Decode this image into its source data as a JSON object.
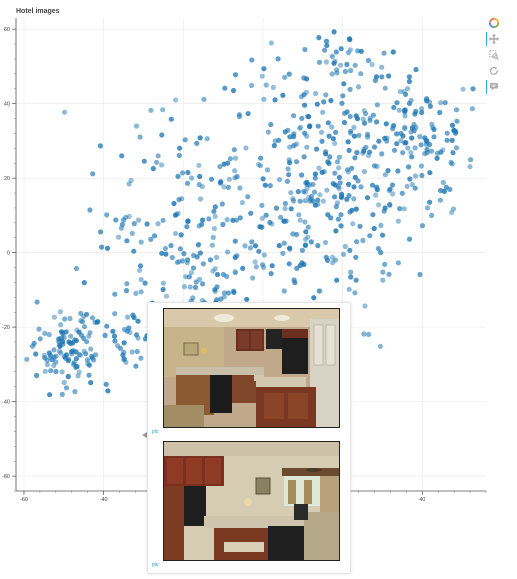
{
  "plot": {
    "title": "Hotel images"
  },
  "toolbar": {
    "tools": [
      {
        "icon": "bokeh-logo-icon"
      },
      {
        "icon": "pan-tool-icon",
        "active": true
      },
      {
        "icon": "box-zoom-tool-icon"
      },
      {
        "icon": "reset-tool-icon"
      },
      {
        "icon": "hover-tool-icon",
        "active": true
      }
    ]
  },
  "tooltip": {
    "items": [
      {
        "label": "pic:",
        "image": "hotel-kitchen-photo"
      },
      {
        "label": "pic:",
        "image": "hotel-suite-kitchen-living-photo"
      }
    ]
  },
  "chart_data": {
    "type": "scatter",
    "title": "Hotel images",
    "xlabel": "",
    "ylabel": "",
    "xlim": [
      -62,
      56
    ],
    "ylim": [
      -64,
      63
    ],
    "x_ticks": [
      "-60",
      "-40",
      "-20",
      "0",
      "20",
      "40"
    ],
    "y_ticks": [
      "60",
      "40",
      "20",
      "0",
      "-20",
      "-40",
      "-60"
    ],
    "grid": true,
    "point_color": "#1f77b4",
    "point_count_estimate": 900,
    "clusters": [
      {
        "center": [
          -49,
          -26
        ],
        "spread": [
          5,
          5
        ],
        "count": 110
      },
      {
        "center": [
          -34,
          -22
        ],
        "spread": [
          3,
          6
        ],
        "count": 25
      },
      {
        "center": [
          -33,
          8
        ],
        "spread": [
          3,
          3
        ],
        "count": 12
      },
      {
        "center": [
          -14,
          5
        ],
        "spread": [
          14,
          16
        ],
        "count": 230
      },
      {
        "center": [
          14,
          30
        ],
        "spread": [
          10,
          13
        ],
        "count": 150
      },
      {
        "center": [
          38,
          30
        ],
        "spread": [
          8,
          10
        ],
        "count": 150
      },
      {
        "center": [
          18,
          5
        ],
        "spread": [
          10,
          12
        ],
        "count": 110
      },
      {
        "center": [
          -10,
          -20
        ],
        "spread": [
          12,
          6
        ],
        "count": 60
      },
      {
        "center": [
          22,
          53
        ],
        "spread": [
          3,
          3
        ],
        "count": 25
      }
    ]
  }
}
